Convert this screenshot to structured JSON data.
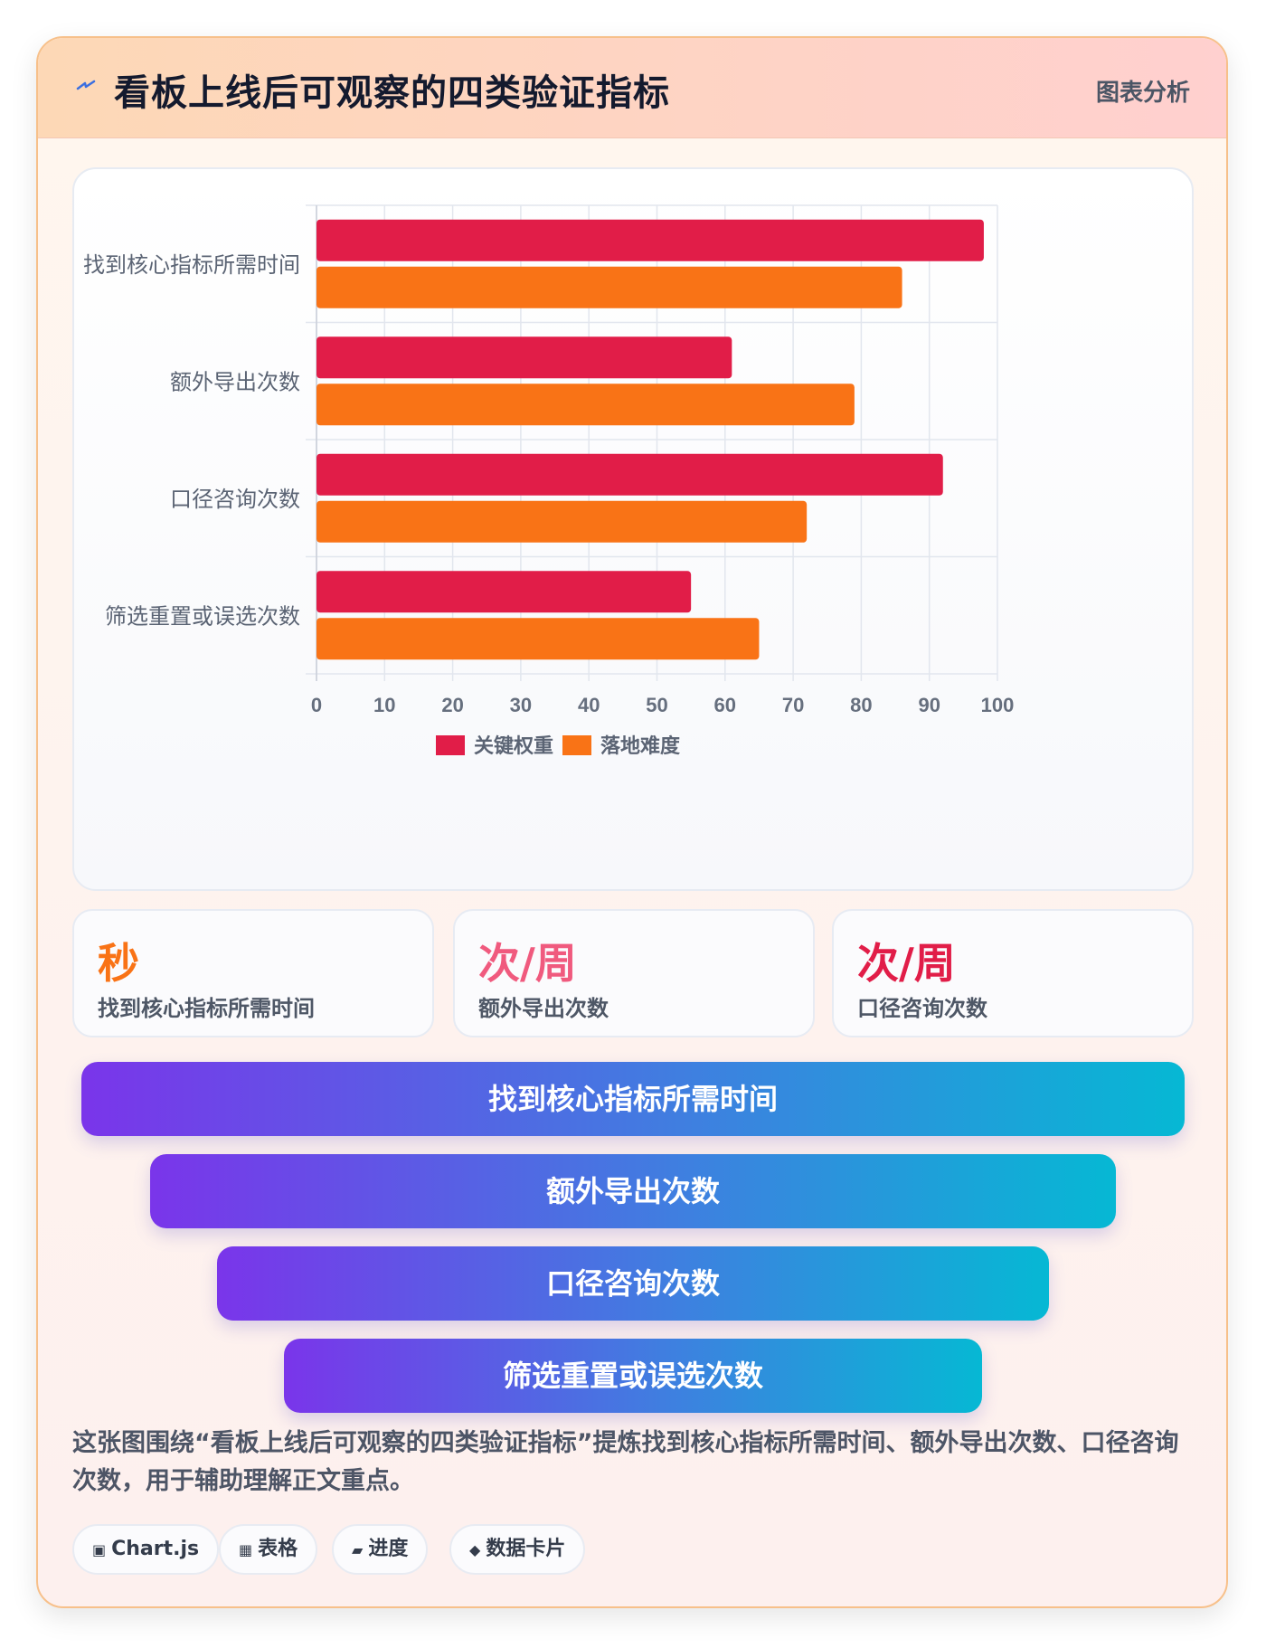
{
  "header": {
    "title": "看板上线后可观察的四类验证指标",
    "tag": "图表分析"
  },
  "chart_data": {
    "type": "bar",
    "orientation": "horizontal",
    "categories": [
      "找到核心指标所需时间",
      "额外导出次数",
      "口径咨询次数",
      "筛选重置或误选次数"
    ],
    "series": [
      {
        "name": "关键权重",
        "values": [
          98,
          61,
          92,
          55
        ],
        "color": "#e11d48"
      },
      {
        "name": "落地难度",
        "values": [
          86,
          79,
          72,
          65
        ],
        "color": "#f97316"
      }
    ],
    "xlim": [
      0,
      100
    ],
    "xticks": [
      "0",
      "10",
      "20",
      "30",
      "40",
      "50",
      "60",
      "70",
      "80",
      "90",
      "100"
    ],
    "grid": true,
    "legend": "bottom"
  },
  "stats": [
    {
      "value": "秒",
      "label": "找到核心指标所需时间",
      "color": "#f97316"
    },
    {
      "value": "次/周",
      "label": "额外导出次数",
      "color": "#f05a7e"
    },
    {
      "value": "次/周",
      "label": "口径咨询次数",
      "color": "#e11d48"
    }
  ],
  "funnel": [
    "找到核心指标所需时间",
    "额外导出次数",
    "口径咨询次数",
    "筛选重置或误选次数"
  ],
  "description": "这张图围绕“看板上线后可观察的四类验证指标”提炼找到核心指标所需时间、额外导出次数、口径咨询次数，用于辅助理解正文重点。",
  "tags": [
    {
      "icon": "▣",
      "label": "Chart.js"
    },
    {
      "icon": "▦",
      "label": "表格"
    },
    {
      "icon": "▰",
      "label": "进度"
    },
    {
      "icon": "◆",
      "label": "数据卡片"
    }
  ]
}
